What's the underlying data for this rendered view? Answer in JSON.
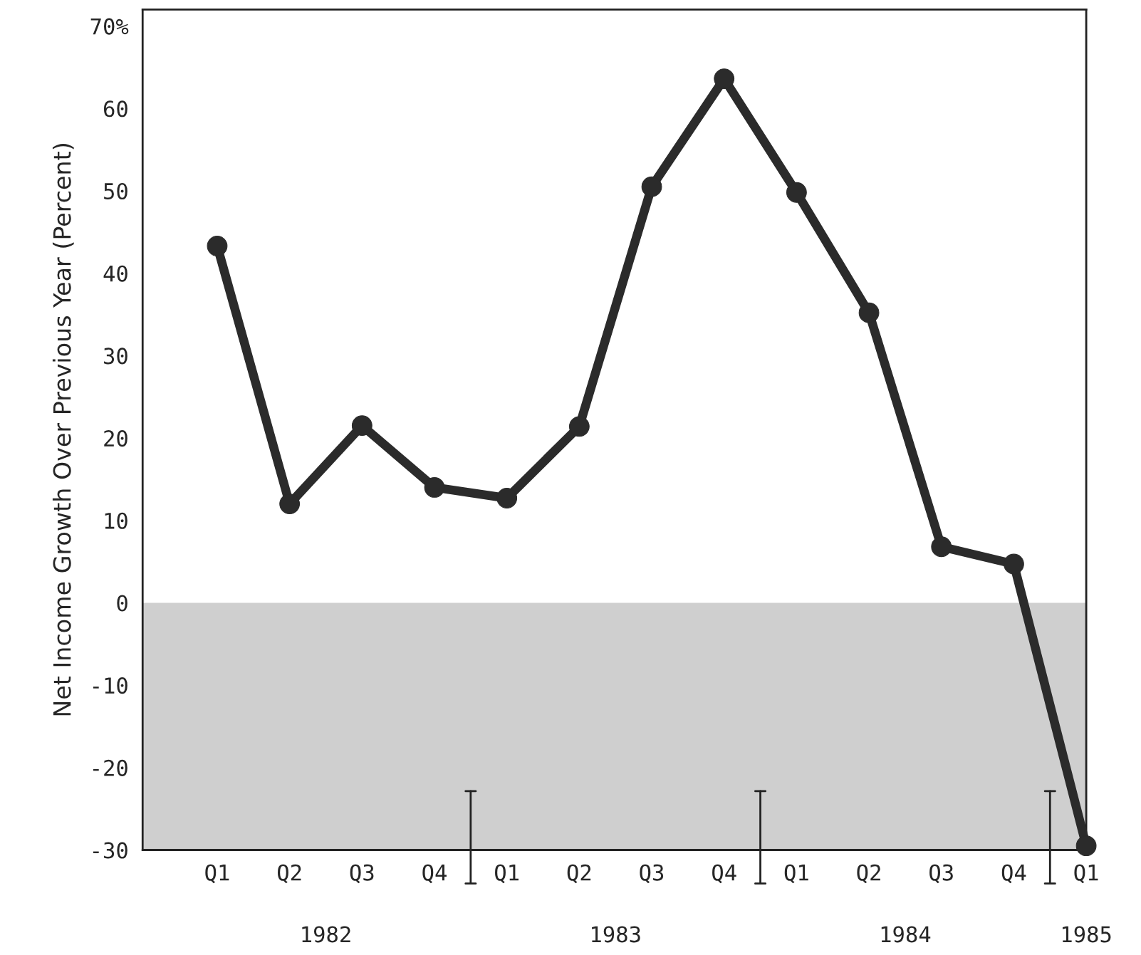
{
  "chart_data": {
    "type": "line",
    "ylabel": "Net Income Growth Over Previous Year (Percent)",
    "categories": [
      "Q1",
      "Q2",
      "Q3",
      "Q4",
      "Q1",
      "Q2",
      "Q3",
      "Q4",
      "Q1",
      "Q2",
      "Q3",
      "Q4",
      "Q1"
    ],
    "series": [
      {
        "color": "#2b2b2b",
        "values": [
          43.3,
          12.0,
          21.5,
          14.0,
          12.7,
          21.4,
          50.5,
          63.6,
          49.8,
          35.2,
          6.8,
          4.7,
          -29.5
        ]
      }
    ],
    "ylim": [
      -30,
      72
    ],
    "yticks": [
      -30,
      -20,
      -10,
      0,
      10,
      20,
      30,
      40,
      50,
      60,
      {
        "value": 70,
        "label": "70%"
      }
    ],
    "bands": [
      {
        "axis": "y",
        "from": -30,
        "to": 0,
        "color": "#cfcfcf"
      }
    ],
    "annotations": [
      "1982",
      "1983",
      "1984",
      "1985"
    ],
    "marker": "circle",
    "line_style": "solid",
    "grid": false,
    "legend": false
  }
}
